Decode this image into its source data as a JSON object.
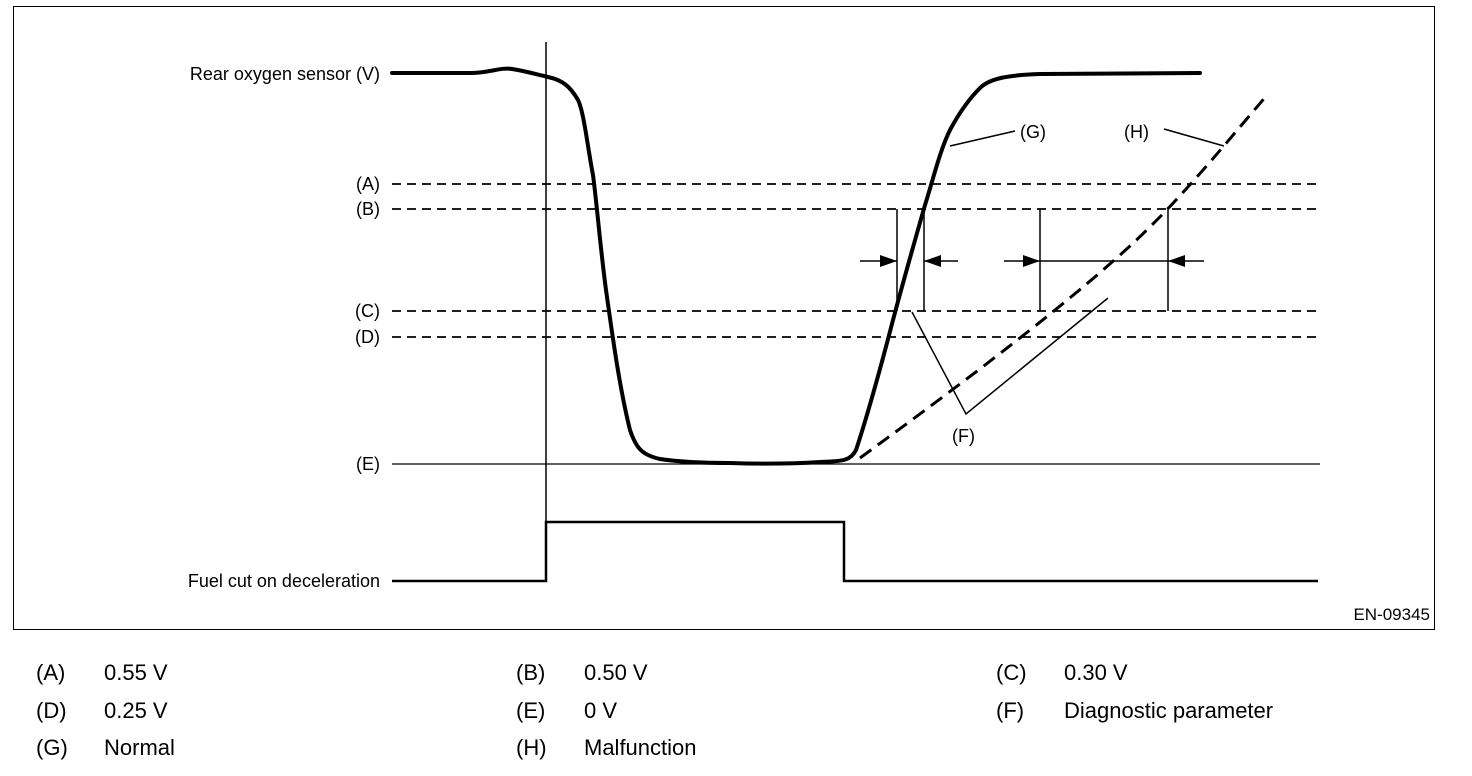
{
  "diagram": {
    "id_code": "EN-09345",
    "row_labels": {
      "sensor": "Rear oxygen sensor (V)",
      "fuel_cut": "Fuel cut on deceleration"
    },
    "level_labels": {
      "A": "(A)",
      "B": "(B)",
      "C": "(C)",
      "D": "(D)",
      "E": "(E)"
    },
    "callouts": {
      "G": "(G)",
      "H": "(H)",
      "F": "(F)"
    }
  },
  "legend": [
    {
      "key": "(A)",
      "value": "0.55 V"
    },
    {
      "key": "(B)",
      "value": "0.50 V"
    },
    {
      "key": "(C)",
      "value": "0.30 V"
    },
    {
      "key": "(D)",
      "value": "0.25 V"
    },
    {
      "key": "(E)",
      "value": "0 V"
    },
    {
      "key": "(F)",
      "value": "Diagnostic parameter"
    },
    {
      "key": "(G)",
      "value": "Normal"
    },
    {
      "key": "(H)",
      "value": "Malfunction"
    }
  ]
}
